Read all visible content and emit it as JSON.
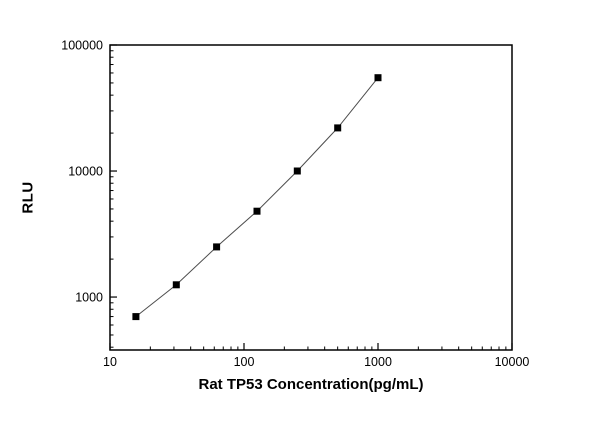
{
  "chart_data": {
    "type": "scatter",
    "title": "",
    "xlabel": "Rat TP53 Concentration(pg/mL)",
    "ylabel": "RLU",
    "x_scale": "log",
    "y_scale": "log",
    "xlim": [
      10,
      10000
    ],
    "ylim": [
      380,
      100000
    ],
    "x_ticks": [
      10,
      100,
      1000,
      10000
    ],
    "y_ticks": [
      1000,
      10000,
      100000
    ],
    "grid": false,
    "legend": "none",
    "series": [
      {
        "name": "standard-curve",
        "x": [
          15.6,
          31.25,
          62.5,
          125,
          250,
          500,
          1000
        ],
        "y": [
          700,
          1250,
          2500,
          4800,
          10000,
          22000,
          55000
        ]
      }
    ],
    "marker": "filled-square",
    "marker_color": "#000000",
    "line_color": "#4d4d4d",
    "axis_color": "#000000"
  }
}
